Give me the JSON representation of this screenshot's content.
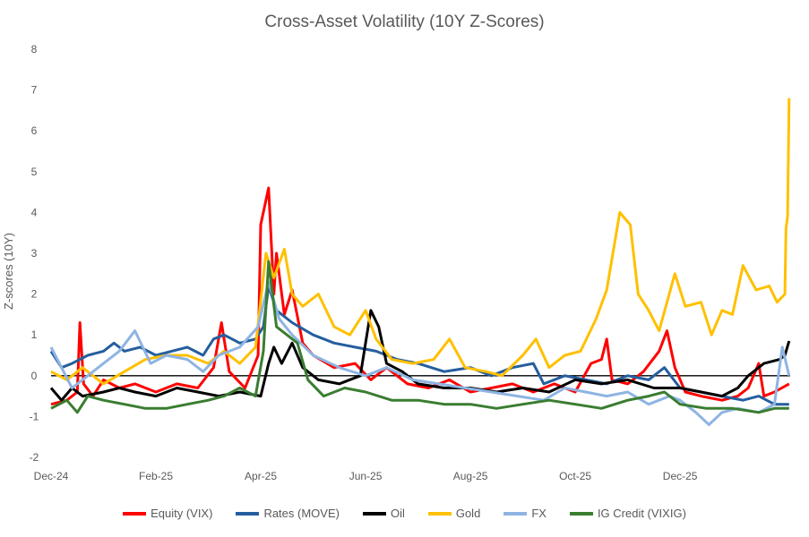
{
  "chart_data": {
    "type": "line",
    "title": "Cross-Asset Volatility (10Y Z-Scores)",
    "xlabel": "",
    "ylabel": "Z-scores (10Y)",
    "ylim": [
      -2,
      8
    ],
    "yticks": [
      -2,
      -1,
      0,
      1,
      2,
      3,
      4,
      5,
      6,
      7,
      8
    ],
    "x_unit": "months since Dec-24",
    "xlim": [
      0,
      14.1
    ],
    "xticks": [
      {
        "x": 0,
        "label": "Dec-24"
      },
      {
        "x": 2,
        "label": "Feb-25"
      },
      {
        "x": 4,
        "label": "Apr-25"
      },
      {
        "x": 6,
        "label": "Jun-25"
      },
      {
        "x": 8,
        "label": "Aug-25"
      },
      {
        "x": 10,
        "label": "Oct-25"
      },
      {
        "x": 12,
        "label": "Dec-25"
      }
    ],
    "legend_position": "bottom",
    "grid": false,
    "series": [
      {
        "name": "Equity (VIX)",
        "color": "#ff0000",
        "points": [
          [
            0,
            -0.7
          ],
          [
            0.3,
            -0.6
          ],
          [
            0.5,
            -0.4
          ],
          [
            0.55,
            1.3
          ],
          [
            0.62,
            -0.2
          ],
          [
            0.8,
            -0.5
          ],
          [
            1,
            -0.1
          ],
          [
            1.3,
            -0.3
          ],
          [
            1.6,
            -0.2
          ],
          [
            2,
            -0.4
          ],
          [
            2.4,
            -0.2
          ],
          [
            2.8,
            -0.3
          ],
          [
            3.1,
            0.2
          ],
          [
            3.25,
            1.3
          ],
          [
            3.4,
            0.1
          ],
          [
            3.7,
            -0.3
          ],
          [
            3.95,
            0.5
          ],
          [
            4.0,
            3.7
          ],
          [
            4.15,
            4.6
          ],
          [
            4.25,
            2.0
          ],
          [
            4.3,
            3.0
          ],
          [
            4.45,
            1.5
          ],
          [
            4.6,
            2.1
          ],
          [
            4.8,
            0.8
          ],
          [
            5.0,
            0.5
          ],
          [
            5.4,
            0.2
          ],
          [
            5.8,
            0.3
          ],
          [
            6.1,
            -0.1
          ],
          [
            6.4,
            0.2
          ],
          [
            6.8,
            -0.2
          ],
          [
            7.2,
            -0.3
          ],
          [
            7.6,
            -0.1
          ],
          [
            8,
            -0.4
          ],
          [
            8.4,
            -0.3
          ],
          [
            8.8,
            -0.2
          ],
          [
            9.2,
            -0.4
          ],
          [
            9.6,
            -0.2
          ],
          [
            10,
            -0.4
          ],
          [
            10.3,
            0.3
          ],
          [
            10.5,
            0.4
          ],
          [
            10.6,
            0.9
          ],
          [
            10.7,
            -0.1
          ],
          [
            11,
            -0.2
          ],
          [
            11.3,
            0.1
          ],
          [
            11.6,
            0.6
          ],
          [
            11.75,
            1.1
          ],
          [
            11.9,
            0.2
          ],
          [
            12.1,
            -0.4
          ],
          [
            12.4,
            -0.5
          ],
          [
            12.8,
            -0.6
          ],
          [
            13.1,
            -0.5
          ],
          [
            13.3,
            -0.3
          ],
          [
            13.5,
            0.3
          ],
          [
            13.6,
            -0.5
          ],
          [
            13.8,
            -0.4
          ],
          [
            14.08,
            -0.2
          ]
        ]
      },
      {
        "name": "Rates (MOVE)",
        "color": "#255e9e",
        "points": [
          [
            0,
            0.6
          ],
          [
            0.2,
            0.2
          ],
          [
            0.4,
            0.3
          ],
          [
            0.7,
            0.5
          ],
          [
            1,
            0.6
          ],
          [
            1.2,
            0.8
          ],
          [
            1.4,
            0.6
          ],
          [
            1.7,
            0.7
          ],
          [
            2,
            0.5
          ],
          [
            2.3,
            0.6
          ],
          [
            2.6,
            0.7
          ],
          [
            2.9,
            0.5
          ],
          [
            3.1,
            0.9
          ],
          [
            3.3,
            1.0
          ],
          [
            3.6,
            0.8
          ],
          [
            3.9,
            0.9
          ],
          [
            4.05,
            1.2
          ],
          [
            4.15,
            2.2
          ],
          [
            4.3,
            1.6
          ],
          [
            4.6,
            1.3
          ],
          [
            5,
            1.0
          ],
          [
            5.4,
            0.8
          ],
          [
            5.8,
            0.7
          ],
          [
            6.2,
            0.6
          ],
          [
            6.6,
            0.4
          ],
          [
            7,
            0.3
          ],
          [
            7.5,
            0.1
          ],
          [
            8,
            0.2
          ],
          [
            8.4,
            0.0
          ],
          [
            8.8,
            0.2
          ],
          [
            9.2,
            0.3
          ],
          [
            9.4,
            -0.2
          ],
          [
            9.8,
            0.0
          ],
          [
            10.2,
            -0.1
          ],
          [
            10.6,
            -0.2
          ],
          [
            11,
            0.0
          ],
          [
            11.4,
            -0.1
          ],
          [
            11.7,
            0.2
          ],
          [
            12,
            -0.3
          ],
          [
            12.4,
            -0.4
          ],
          [
            12.8,
            -0.5
          ],
          [
            13.2,
            -0.6
          ],
          [
            13.5,
            -0.5
          ],
          [
            13.8,
            -0.7
          ],
          [
            14.08,
            -0.7
          ]
        ]
      },
      {
        "name": "Oil",
        "color": "#000000",
        "points": [
          [
            0,
            -0.3
          ],
          [
            0.2,
            -0.6
          ],
          [
            0.4,
            -0.3
          ],
          [
            0.6,
            -0.5
          ],
          [
            1,
            -0.4
          ],
          [
            1.3,
            -0.3
          ],
          [
            1.6,
            -0.4
          ],
          [
            2,
            -0.5
          ],
          [
            2.4,
            -0.3
          ],
          [
            2.8,
            -0.4
          ],
          [
            3.2,
            -0.5
          ],
          [
            3.6,
            -0.4
          ],
          [
            4,
            -0.5
          ],
          [
            4.15,
            0.3
          ],
          [
            4.25,
            0.7
          ],
          [
            4.4,
            0.3
          ],
          [
            4.6,
            0.8
          ],
          [
            4.8,
            0.2
          ],
          [
            5.1,
            -0.1
          ],
          [
            5.5,
            -0.2
          ],
          [
            5.9,
            0.0
          ],
          [
            6.1,
            1.6
          ],
          [
            6.25,
            1.2
          ],
          [
            6.4,
            0.3
          ],
          [
            6.7,
            0.1
          ],
          [
            7,
            -0.2
          ],
          [
            7.5,
            -0.3
          ],
          [
            8,
            -0.3
          ],
          [
            8.5,
            -0.4
          ],
          [
            9,
            -0.3
          ],
          [
            9.5,
            -0.4
          ],
          [
            10,
            -0.1
          ],
          [
            10.5,
            -0.2
          ],
          [
            11,
            -0.1
          ],
          [
            11.5,
            -0.3
          ],
          [
            12,
            -0.3
          ],
          [
            12.4,
            -0.4
          ],
          [
            12.8,
            -0.5
          ],
          [
            13.1,
            -0.3
          ],
          [
            13.3,
            0.0
          ],
          [
            13.6,
            0.3
          ],
          [
            13.9,
            0.4
          ],
          [
            14.0,
            0.5
          ],
          [
            14.08,
            0.85
          ]
        ]
      },
      {
        "name": "Gold",
        "color": "#ffc000",
        "points": [
          [
            0,
            0.1
          ],
          [
            0.3,
            -0.1
          ],
          [
            0.6,
            0.2
          ],
          [
            1,
            -0.2
          ],
          [
            1.4,
            0.1
          ],
          [
            1.8,
            0.4
          ],
          [
            2.2,
            0.5
          ],
          [
            2.6,
            0.5
          ],
          [
            3,
            0.3
          ],
          [
            3.3,
            0.6
          ],
          [
            3.6,
            0.3
          ],
          [
            3.9,
            0.7
          ],
          [
            4.1,
            3.0
          ],
          [
            4.25,
            2.4
          ],
          [
            4.45,
            3.1
          ],
          [
            4.6,
            2.0
          ],
          [
            4.8,
            1.7
          ],
          [
            5.1,
            2.0
          ],
          [
            5.4,
            1.2
          ],
          [
            5.7,
            1.0
          ],
          [
            6.0,
            1.6
          ],
          [
            6.2,
            0.9
          ],
          [
            6.5,
            0.4
          ],
          [
            6.9,
            0.3
          ],
          [
            7.3,
            0.4
          ],
          [
            7.6,
            0.9
          ],
          [
            7.9,
            0.2
          ],
          [
            8.3,
            0.1
          ],
          [
            8.6,
            0.0
          ],
          [
            9.0,
            0.5
          ],
          [
            9.25,
            0.9
          ],
          [
            9.5,
            0.2
          ],
          [
            9.8,
            0.5
          ],
          [
            10.1,
            0.6
          ],
          [
            10.4,
            1.4
          ],
          [
            10.6,
            2.1
          ],
          [
            10.85,
            4.0
          ],
          [
            11.05,
            3.7
          ],
          [
            11.2,
            2.0
          ],
          [
            11.4,
            1.6
          ],
          [
            11.6,
            1.1
          ],
          [
            11.9,
            2.5
          ],
          [
            12.1,
            1.7
          ],
          [
            12.4,
            1.8
          ],
          [
            12.6,
            1.0
          ],
          [
            12.8,
            1.6
          ],
          [
            13.0,
            1.5
          ],
          [
            13.2,
            2.7
          ],
          [
            13.45,
            2.1
          ],
          [
            13.7,
            2.2
          ],
          [
            13.85,
            1.8
          ],
          [
            14.0,
            2.0
          ],
          [
            14.02,
            3.6
          ],
          [
            14.05,
            3.9
          ],
          [
            14.08,
            6.8
          ]
        ]
      },
      {
        "name": "FX",
        "color": "#8eb4e3",
        "points": [
          [
            0,
            0.7
          ],
          [
            0.2,
            0.2
          ],
          [
            0.4,
            -0.3
          ],
          [
            0.7,
            0.0
          ],
          [
            1,
            0.3
          ],
          [
            1.3,
            0.6
          ],
          [
            1.6,
            1.1
          ],
          [
            1.9,
            0.3
          ],
          [
            2.2,
            0.5
          ],
          [
            2.6,
            0.4
          ],
          [
            2.9,
            0.1
          ],
          [
            3.2,
            0.5
          ],
          [
            3.6,
            0.7
          ],
          [
            3.95,
            1.2
          ],
          [
            4.15,
            2.3
          ],
          [
            4.35,
            1.4
          ],
          [
            4.6,
            1.0
          ],
          [
            5,
            0.5
          ],
          [
            5.5,
            0.2
          ],
          [
            6,
            0.0
          ],
          [
            6.4,
            0.2
          ],
          [
            6.9,
            -0.1
          ],
          [
            7.4,
            -0.2
          ],
          [
            7.9,
            -0.3
          ],
          [
            8.4,
            -0.4
          ],
          [
            8.9,
            -0.5
          ],
          [
            9.4,
            -0.6
          ],
          [
            9.8,
            -0.3
          ],
          [
            10.2,
            -0.4
          ],
          [
            10.6,
            -0.5
          ],
          [
            11,
            -0.4
          ],
          [
            11.4,
            -0.7
          ],
          [
            11.8,
            -0.5
          ],
          [
            12,
            -0.6
          ],
          [
            12.3,
            -0.9
          ],
          [
            12.55,
            -1.2
          ],
          [
            12.8,
            -0.9
          ],
          [
            13.1,
            -0.8
          ],
          [
            13.5,
            -0.9
          ],
          [
            13.8,
            -0.7
          ],
          [
            13.95,
            0.7
          ],
          [
            14.08,
            0.0
          ]
        ]
      },
      {
        "name": "IG Credit (VIXIG)",
        "color": "#3a7d31",
        "points": [
          [
            0,
            -0.8
          ],
          [
            0.3,
            -0.6
          ],
          [
            0.5,
            -0.9
          ],
          [
            0.7,
            -0.5
          ],
          [
            1,
            -0.6
          ],
          [
            1.4,
            -0.7
          ],
          [
            1.8,
            -0.8
          ],
          [
            2.2,
            -0.8
          ],
          [
            2.6,
            -0.7
          ],
          [
            3,
            -0.6
          ],
          [
            3.3,
            -0.5
          ],
          [
            3.6,
            -0.3
          ],
          [
            3.9,
            -0.5
          ],
          [
            4.05,
            0.6
          ],
          [
            4.15,
            2.8
          ],
          [
            4.3,
            1.2
          ],
          [
            4.5,
            1.0
          ],
          [
            4.7,
            0.8
          ],
          [
            4.9,
            -0.1
          ],
          [
            5.2,
            -0.5
          ],
          [
            5.6,
            -0.3
          ],
          [
            6,
            -0.4
          ],
          [
            6.5,
            -0.6
          ],
          [
            7,
            -0.6
          ],
          [
            7.5,
            -0.7
          ],
          [
            8,
            -0.7
          ],
          [
            8.5,
            -0.8
          ],
          [
            9,
            -0.7
          ],
          [
            9.5,
            -0.6
          ],
          [
            10,
            -0.7
          ],
          [
            10.5,
            -0.8
          ],
          [
            11,
            -0.6
          ],
          [
            11.4,
            -0.5
          ],
          [
            11.7,
            -0.4
          ],
          [
            12,
            -0.7
          ],
          [
            12.5,
            -0.8
          ],
          [
            13,
            -0.8
          ],
          [
            13.5,
            -0.9
          ],
          [
            13.8,
            -0.8
          ],
          [
            14.08,
            -0.8
          ]
        ]
      }
    ]
  }
}
